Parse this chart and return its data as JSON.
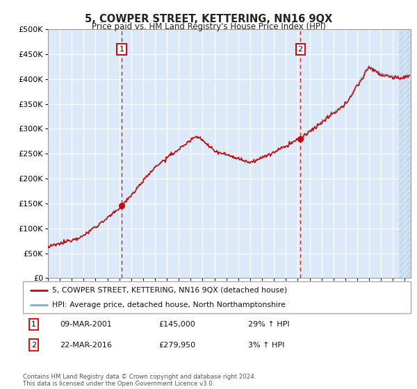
{
  "title": "5, COWPER STREET, KETTERING, NN16 9QX",
  "subtitle": "Price paid vs. HM Land Registry's House Price Index (HPI)",
  "ytick_vals": [
    0,
    50000,
    100000,
    150000,
    200000,
    250000,
    300000,
    350000,
    400000,
    450000,
    500000
  ],
  "ylim": [
    0,
    500000
  ],
  "sale_year_vals": [
    2001.19,
    2016.22
  ],
  "sale_prices": [
    145000,
    279950
  ],
  "sale_labels": [
    "1",
    "2"
  ],
  "legend_entries": [
    "5, COWPER STREET, KETTERING, NN16 9QX (detached house)",
    "HPI: Average price, detached house, North Northamptonshire"
  ],
  "annotation_rows": [
    [
      "1",
      "09-MAR-2001",
      "£145,000",
      "29% ↑ HPI"
    ],
    [
      "2",
      "22-MAR-2016",
      "£279,950",
      "3% ↑ HPI"
    ]
  ],
  "footer": "Contains HM Land Registry data © Crown copyright and database right 2024.\nThis data is licensed under the Open Government Licence v3.0.",
  "hpi_color": "#7eadd4",
  "price_color": "#cc0000",
  "background_color": "#dbe9f8",
  "xlim_start": 1995.0,
  "xlim_end": 2025.5,
  "future_start": 2024.5
}
